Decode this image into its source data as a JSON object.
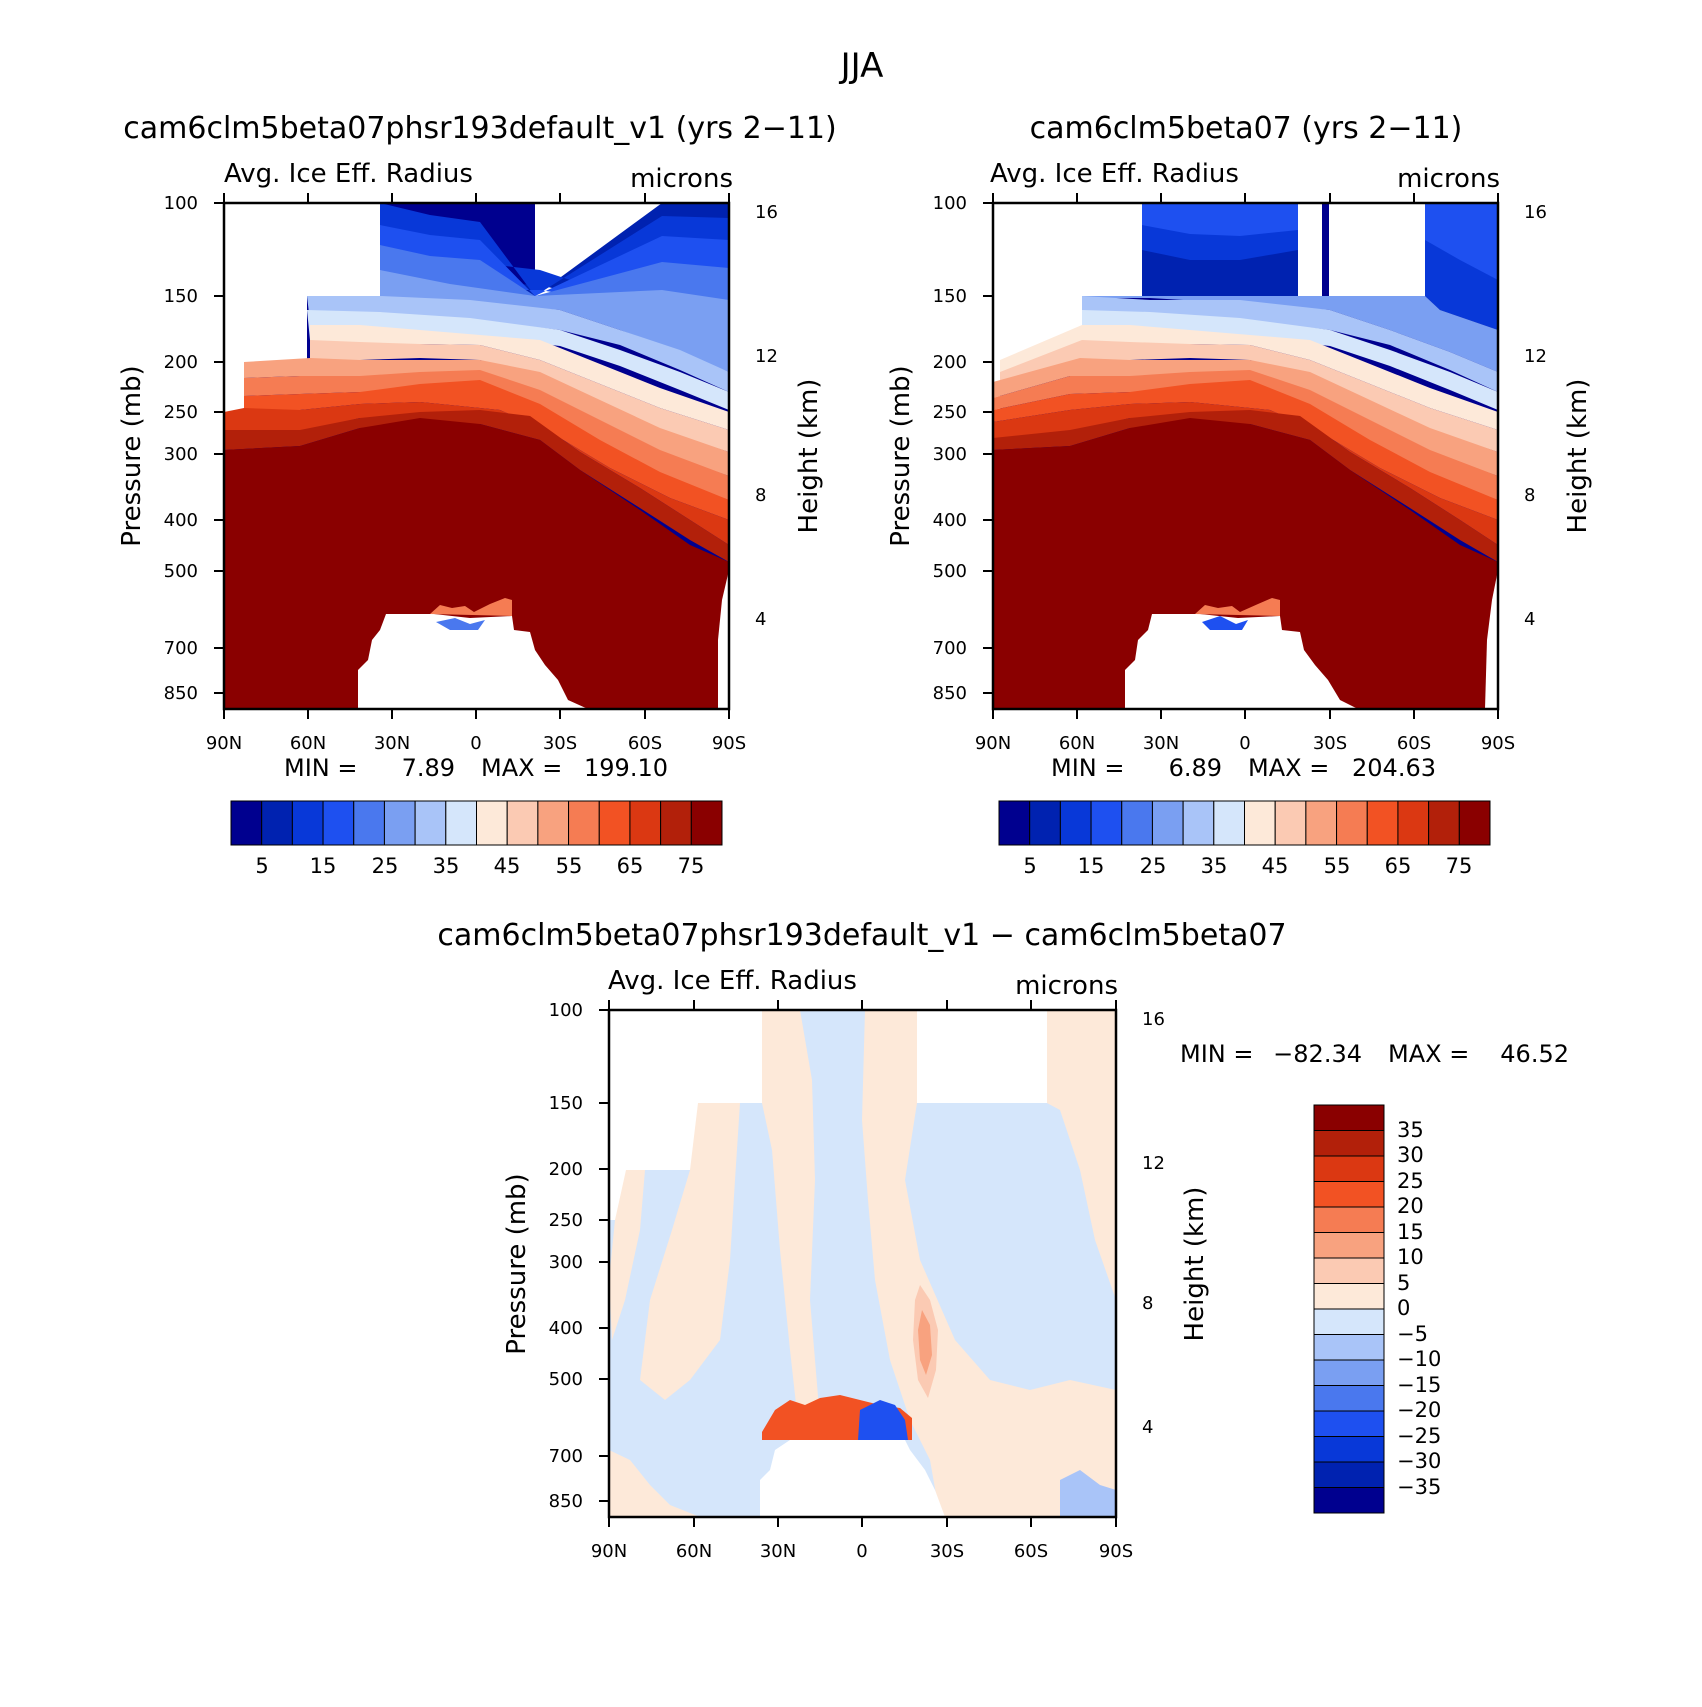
{
  "figure": {
    "season": "JJA"
  },
  "colors": {
    "palette": [
      "#00008f",
      "#0022b0",
      "#0838d8",
      "#1e50f0",
      "#4a78ee",
      "#7a9ff2",
      "#a9c4f8",
      "#d5e6fb",
      "#fde9d9",
      "#fbcab3",
      "#f8a27f",
      "#f57c53",
      "#f25223",
      "#db3812",
      "#b2200a",
      "#8a0000"
    ],
    "diff_palette": [
      "#00008f",
      "#0022b0",
      "#0838d8",
      "#1e50f0",
      "#4a78ee",
      "#7a9ff2",
      "#a9c4f8",
      "#d5e6fb",
      "#fde9d9",
      "#fbcab3",
      "#f8a27f",
      "#f57c53",
      "#f25223",
      "#db3812",
      "#b2200a",
      "#8a0000"
    ]
  },
  "chart_data": [
    {
      "id": "panel-test",
      "type": "heatmap",
      "title": "cam6clm5beta07phsr193default_v1 (yrs 2−11)",
      "variable": "Avg. Ice Eff. Radius",
      "units": "microns",
      "xlabel": "",
      "ylabel": "Pressure (mb)",
      "ylabel_right": "Height (km)",
      "x_ticks": [
        "90N",
        "60N",
        "30N",
        "0",
        "30S",
        "60S",
        "90S"
      ],
      "y_ticks": [
        "100",
        "150",
        "200",
        "250",
        "300",
        "400",
        "500",
        "700",
        "850"
      ],
      "y_ticks_right": [
        "16",
        "12",
        "8",
        "4"
      ],
      "min_label": "MIN =",
      "min_value": "7.89",
      "max_label": "MAX = ",
      "max_value": "199.10",
      "colorbar_labels": [
        "5",
        "15",
        "25",
        "35",
        "45",
        "55",
        "65",
        "75"
      ],
      "contour_levels": [
        5,
        10,
        15,
        20,
        25,
        30,
        35,
        40,
        45,
        50,
        55,
        60,
        65,
        70,
        75
      ]
    },
    {
      "id": "panel-control",
      "type": "heatmap",
      "title": "cam6clm5beta07 (yrs 2−11)",
      "variable": "Avg. Ice Eff. Radius",
      "units": "microns",
      "xlabel": "",
      "ylabel": "Pressure (mb)",
      "ylabel_right": "Height (km)",
      "x_ticks": [
        "90N",
        "60N",
        "30N",
        "0",
        "30S",
        "60S",
        "90S"
      ],
      "y_ticks": [
        "100",
        "150",
        "200",
        "250",
        "300",
        "400",
        "500",
        "700",
        "850"
      ],
      "y_ticks_right": [
        "16",
        "12",
        "8",
        "4"
      ],
      "min_label": "MIN =",
      "min_value": "6.89",
      "max_label": "MAX = ",
      "max_value": "204.63",
      "colorbar_labels": [
        "5",
        "15",
        "25",
        "35",
        "45",
        "55",
        "65",
        "75"
      ],
      "contour_levels": [
        5,
        10,
        15,
        20,
        25,
        30,
        35,
        40,
        45,
        50,
        55,
        60,
        65,
        70,
        75
      ]
    },
    {
      "id": "panel-diff",
      "type": "heatmap",
      "title": "cam6clm5beta07phsr193default_v1 − cam6clm5beta07",
      "variable": "Avg. Ice Eff. Radius",
      "units": "microns",
      "xlabel": "",
      "ylabel": "Pressure (mb)",
      "ylabel_right": "Height (km)",
      "x_ticks": [
        "90N",
        "60N",
        "30N",
        "0",
        "30S",
        "60S",
        "90S"
      ],
      "y_ticks": [
        "100",
        "150",
        "200",
        "250",
        "300",
        "400",
        "500",
        "700",
        "850"
      ],
      "y_ticks_right": [
        "16",
        "12",
        "8",
        "4"
      ],
      "min_label": "MIN = ",
      "min_value": "−82.34",
      "max_label": "MAX =  ",
      "max_value": "46.52",
      "colorbar_labels": [
        "35",
        "30",
        "25",
        "20",
        "15",
        "10",
        "5",
        "0",
        "−5",
        "−10",
        "−15",
        "−20",
        "−25",
        "−30",
        "−35"
      ],
      "contour_levels": [
        -35,
        -30,
        -25,
        -20,
        -15,
        -10,
        -5,
        0,
        5,
        10,
        15,
        20,
        25,
        30,
        35
      ]
    }
  ]
}
